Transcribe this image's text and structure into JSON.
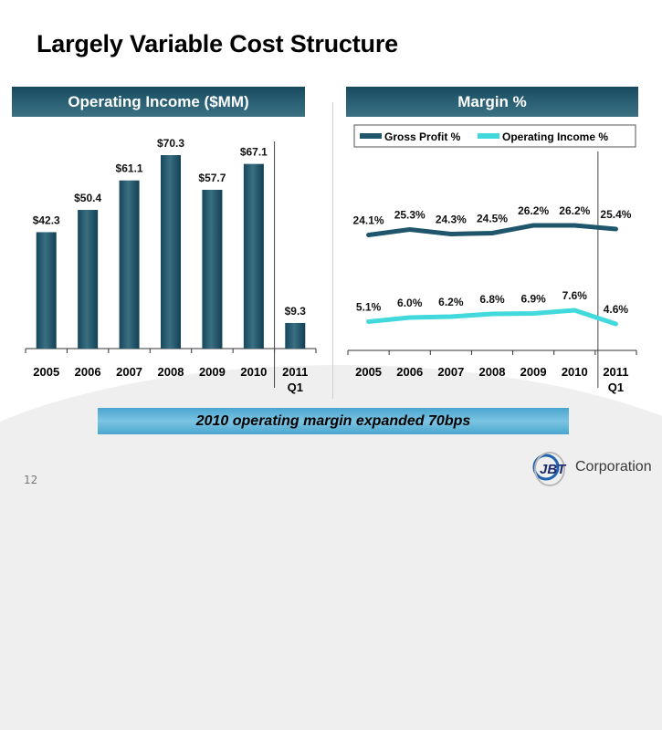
{
  "slide": {
    "title": "Largely Variable Cost Structure",
    "page_number": "12",
    "callout": "2010 operating margin expanded 70bps",
    "logo": {
      "mark": "JBT",
      "text": "Corporation"
    }
  },
  "colors": {
    "bar": "#255a6e",
    "gross_profit_line": "#1f566b",
    "operating_income_line": "#41d9dc",
    "header_bg": "#2c6276",
    "callout_bg": "#6bbbdc"
  },
  "chart_data": [
    {
      "type": "bar",
      "title": "Operating Income ($MM)",
      "categories": [
        "2005",
        "2006",
        "2007",
        "2008",
        "2009",
        "2010",
        "2011 Q1"
      ],
      "values": [
        42.3,
        50.4,
        61.1,
        70.3,
        57.7,
        67.1,
        9.3
      ],
      "labels": [
        "$42.3",
        "$50.4",
        "$61.1",
        "$70.3",
        "$57.7",
        "$67.1",
        "$9.3"
      ],
      "xlabel": "",
      "ylabel": "",
      "ylim": [
        0,
        80
      ],
      "grid": false,
      "separator_before": "2011 Q1"
    },
    {
      "type": "line",
      "title": "Margin %",
      "categories": [
        "2005",
        "2006",
        "2007",
        "2008",
        "2009",
        "2010",
        "2011 Q1"
      ],
      "series": [
        {
          "name": "Gross Profit %",
          "values": [
            24.1,
            25.3,
            24.3,
            24.5,
            26.2,
            26.2,
            25.4
          ],
          "labels": [
            "24.1%",
            "25.3%",
            "24.3%",
            "24.5%",
            "26.2%",
            "26.2%",
            "25.4%"
          ]
        },
        {
          "name": "Operating Income %",
          "values": [
            5.1,
            6.0,
            6.2,
            6.8,
            6.9,
            7.6,
            4.6
          ],
          "labels": [
            "5.1%",
            "6.0%",
            "6.2%",
            "6.8%",
            "6.9%",
            "7.6%",
            "4.6%"
          ]
        }
      ],
      "legend": "top",
      "grid": false,
      "separator_before": "2011 Q1"
    }
  ]
}
